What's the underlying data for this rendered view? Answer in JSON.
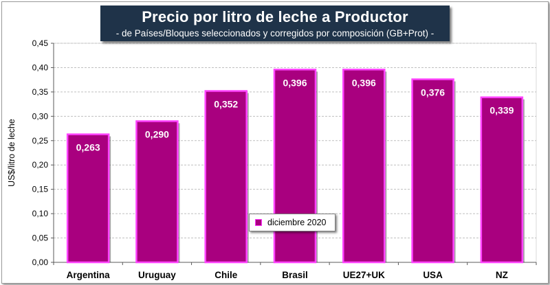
{
  "chart_data": {
    "type": "bar",
    "title": "Precio por litro de leche a Productor",
    "subtitle": "-  de Países/Bloques seleccionados y corregidos por composición (GB+Prot) -",
    "xlabel": "",
    "ylabel": "US$/litro de leche",
    "ylim": [
      0,
      0.45
    ],
    "yticks": [
      "0,00",
      "0,05",
      "0,10",
      "0,15",
      "0,20",
      "0,25",
      "0,30",
      "0,35",
      "0,40",
      "0,45"
    ],
    "categories": [
      "Argentina",
      "Uruguay",
      "Chile",
      "Brasil",
      "UE27+UK",
      "USA",
      "NZ"
    ],
    "series": [
      {
        "name": "diciembre 2020",
        "values": [
          0.263,
          0.29,
          0.352,
          0.396,
          0.396,
          0.376,
          0.339
        ],
        "labels": [
          "0,263",
          "0,290",
          "0,352",
          "0,396",
          "0,396",
          "0,376",
          "0,339"
        ]
      }
    ],
    "legend_position": "lower-center",
    "grid": true,
    "colors": {
      "bar_fill": "#a9007f",
      "bar_edge": "#ff44ff",
      "grid": "#bfbfbf"
    }
  }
}
